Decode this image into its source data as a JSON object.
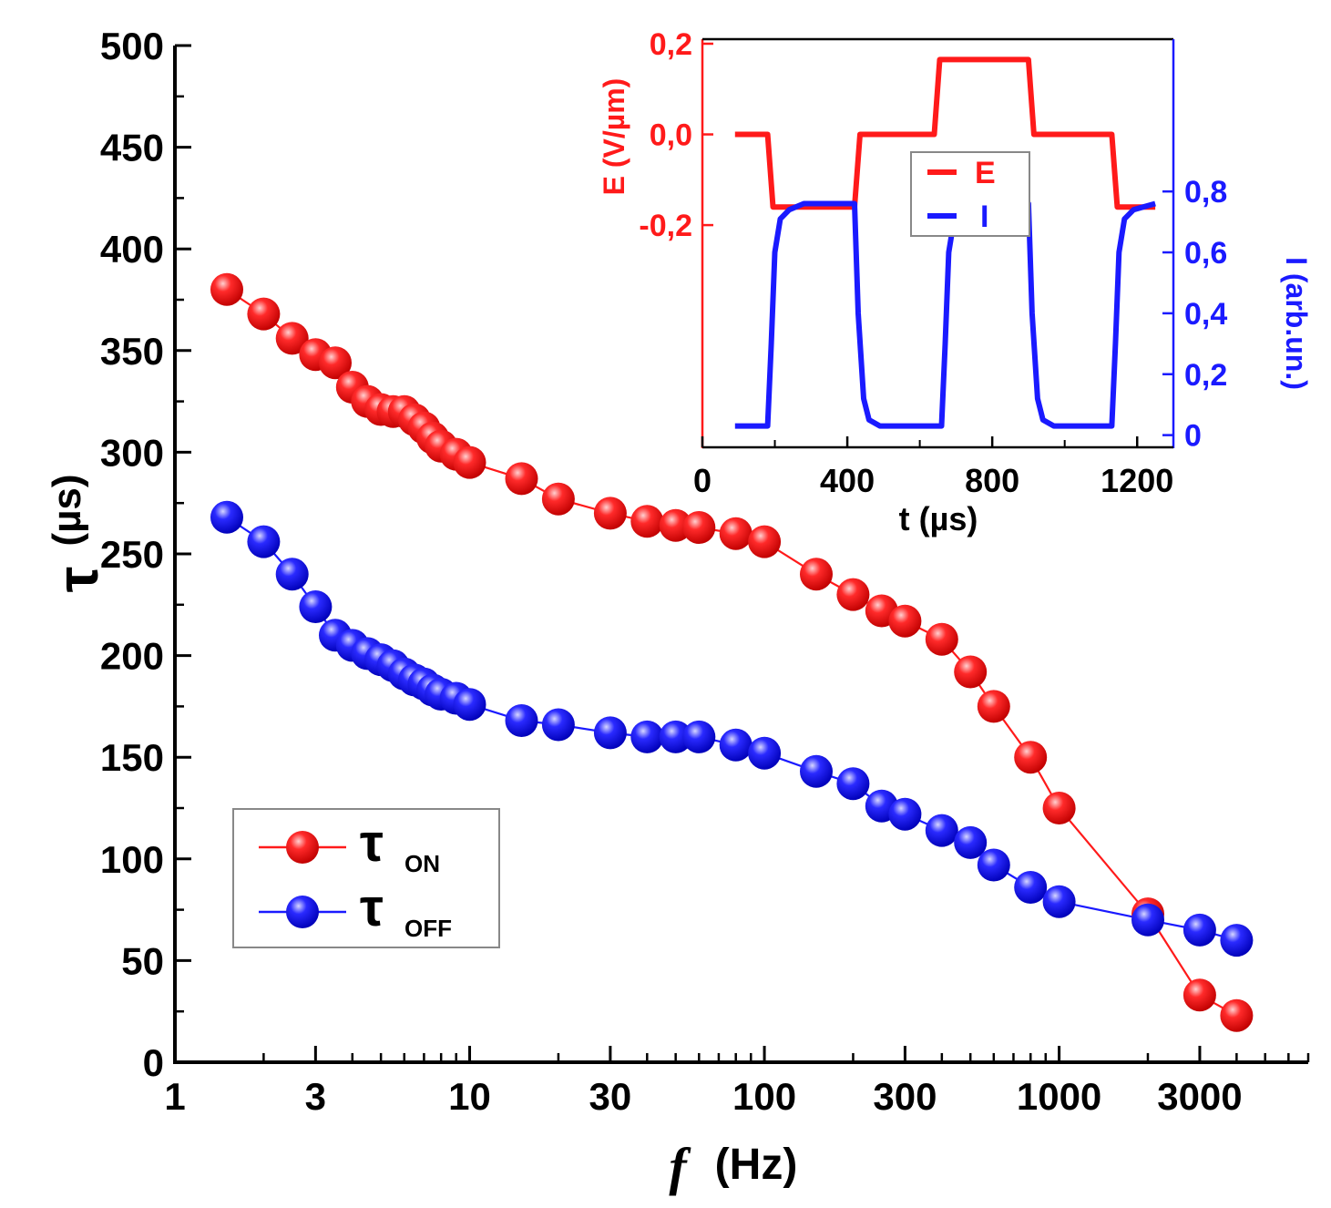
{
  "chart_data": [
    {
      "name": "main",
      "type": "scatter",
      "title": "",
      "xlabel": "(Hz)",
      "xlabel_symbol": "f",
      "ylabel": "(µs)",
      "ylabel_symbol": "τ",
      "x_scale": "log",
      "xlim": [
        1,
        7000
      ],
      "ylim": [
        0,
        500
      ],
      "x_ticks": [
        1,
        3,
        10,
        30,
        100,
        300,
        1000,
        3000
      ],
      "x_tick_labels": [
        "1",
        "3",
        "10",
        "30",
        "100",
        "300",
        "1000",
        "3000"
      ],
      "y_ticks": [
        0,
        50,
        100,
        150,
        200,
        250,
        300,
        350,
        400,
        450,
        500
      ],
      "y_tick_labels": [
        "0",
        "50",
        "100",
        "150",
        "200",
        "250",
        "300",
        "350",
        "400",
        "450",
        "500"
      ],
      "legend_position": "bottom-left",
      "series": [
        {
          "name": "τON",
          "legend_main": "τ",
          "legend_sub": "ON",
          "color": "#ff1a1a",
          "x": [
            1.5,
            2,
            2.5,
            3,
            3.5,
            4,
            4.5,
            5,
            5.5,
            6,
            6.5,
            7,
            7.5,
            8,
            9,
            10,
            15,
            20,
            30,
            40,
            50,
            60,
            80,
            100,
            150,
            200,
            250,
            300,
            400,
            500,
            600,
            800,
            1000,
            2000,
            3000,
            4000
          ],
          "y": [
            380,
            368,
            356,
            348,
            344,
            332,
            325,
            321,
            320,
            320,
            316,
            312,
            307,
            303,
            299,
            295,
            287,
            277,
            270,
            266,
            264,
            263,
            260,
            256,
            240,
            230,
            222,
            217,
            208,
            192,
            175,
            150,
            125,
            73,
            33,
            23
          ]
        },
        {
          "name": "τOFF",
          "legend_main": "τ",
          "legend_sub": "OFF",
          "color": "#1a1aff",
          "x": [
            1.5,
            2,
            2.5,
            3,
            3.5,
            4,
            4.5,
            5,
            5.5,
            6,
            6.5,
            7,
            7.5,
            8,
            9,
            10,
            15,
            20,
            30,
            40,
            50,
            60,
            80,
            100,
            150,
            200,
            250,
            300,
            400,
            500,
            600,
            800,
            1000,
            2000,
            3000,
            4000
          ],
          "y": [
            268,
            256,
            240,
            224,
            210,
            205,
            201,
            198,
            195,
            191,
            188,
            186,
            183,
            181,
            179,
            176,
            168,
            166,
            162,
            160,
            160,
            160,
            156,
            152,
            143,
            137,
            126,
            122,
            114,
            108,
            97,
            86,
            79,
            70,
            65,
            60
          ]
        }
      ]
    },
    {
      "name": "inset",
      "type": "line",
      "xlabel": "t (µs)",
      "ylabel_left": "E (V/µm)",
      "ylabel_right": "I (arb.un.)",
      "xlim": [
        0,
        1300
      ],
      "ylim_left": [
        -0.69,
        0.21
      ],
      "ylim_right": [
        -0.04,
        1.3
      ],
      "x_ticks": [
        0,
        400,
        800,
        1200
      ],
      "x_tick_labels": [
        "0",
        "400",
        "800",
        "1200"
      ],
      "y_left_ticks": [
        0.2,
        0.0,
        -0.2
      ],
      "y_left_tick_labels": [
        "0,2",
        "0,0",
        "-0,2"
      ],
      "y_right_ticks": [
        0,
        0.2,
        0.4,
        0.6,
        0.8
      ],
      "y_right_tick_labels": [
        "0",
        "0,2",
        "0,4",
        "0,6",
        "0,8"
      ],
      "legend_position": "top-center",
      "series": [
        {
          "name": "E",
          "axis": "left",
          "color": "#ff1a1a",
          "x": [
            90,
            180,
            195,
            420,
            435,
            640,
            655,
            900,
            915,
            1130,
            1145,
            1250
          ],
          "y": [
            0.0,
            0.0,
            -0.16,
            -0.16,
            0.0,
            0.0,
            0.165,
            0.165,
            0.0,
            0.0,
            -0.16,
            -0.16
          ]
        },
        {
          "name": "I",
          "axis": "right",
          "color": "#1a1aff",
          "x": [
            90,
            180,
            190,
            200,
            215,
            240,
            280,
            420,
            430,
            445,
            460,
            490,
            520,
            660,
            670,
            680,
            695,
            720,
            760,
            900,
            910,
            925,
            940,
            970,
            1010,
            1130,
            1140,
            1150,
            1165,
            1190,
            1250
          ],
          "y": [
            0.03,
            0.03,
            0.3,
            0.6,
            0.71,
            0.74,
            0.76,
            0.76,
            0.4,
            0.12,
            0.05,
            0.03,
            0.03,
            0.03,
            0.3,
            0.6,
            0.71,
            0.74,
            0.76,
            0.76,
            0.4,
            0.12,
            0.05,
            0.03,
            0.03,
            0.03,
            0.3,
            0.6,
            0.71,
            0.74,
            0.76
          ]
        }
      ]
    }
  ]
}
